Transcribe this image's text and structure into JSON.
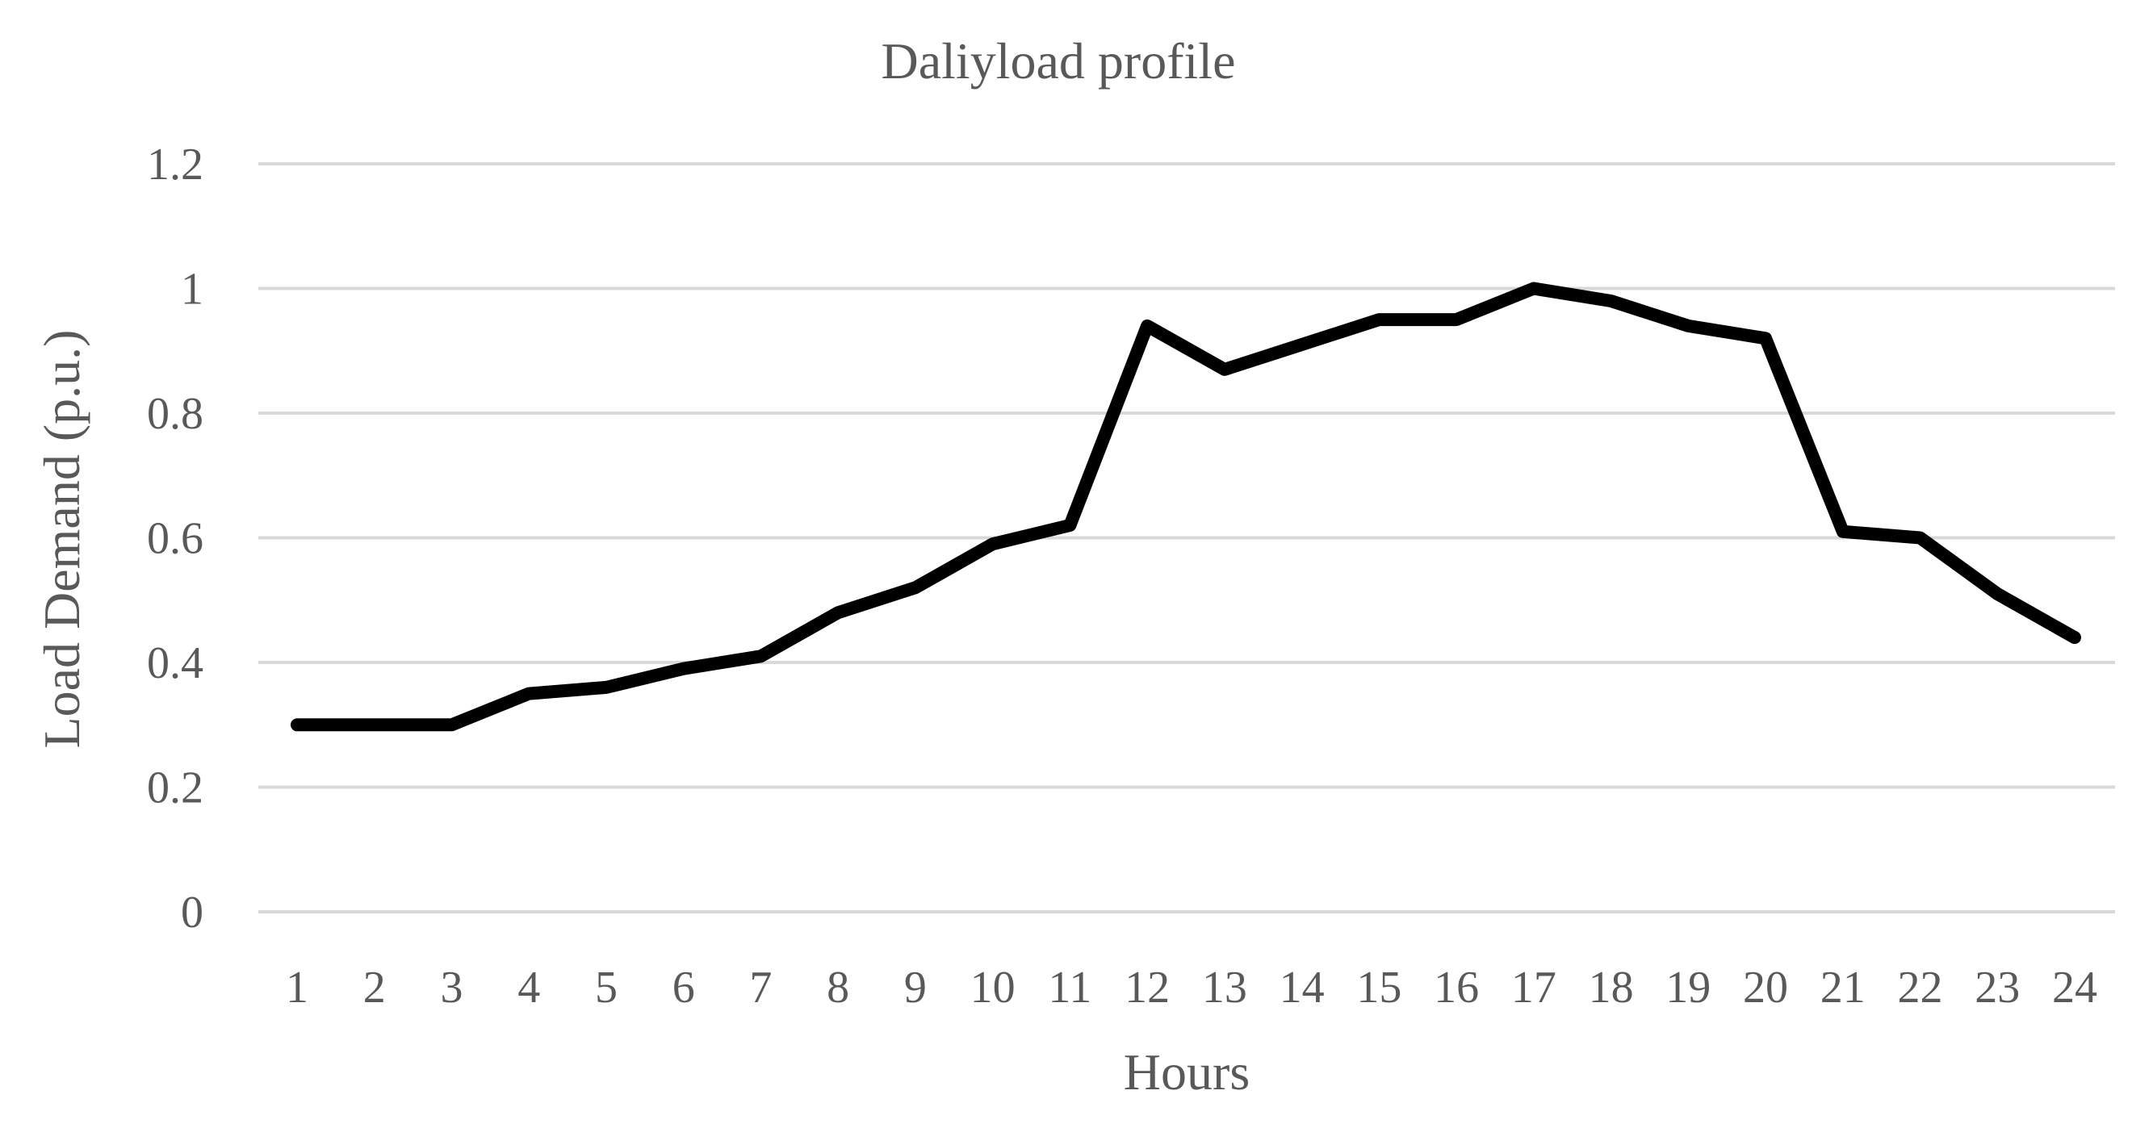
{
  "chart_data": {
    "type": "line",
    "title": "Daliyload profile",
    "xlabel": "Hours",
    "ylabel": "Load Demand (p.u.)",
    "categories": [
      "1",
      "2",
      "3",
      "4",
      "5",
      "6",
      "7",
      "8",
      "9",
      "10",
      "11",
      "12",
      "13",
      "14",
      "15",
      "16",
      "17",
      "18",
      "19",
      "20",
      "21",
      "22",
      "23",
      "24"
    ],
    "y_ticks": [
      "0",
      "0.2",
      "0.4",
      "0.6",
      "0.8",
      "1",
      "1.2"
    ],
    "ylim": [
      0,
      1.2
    ],
    "grid": true,
    "legend": "none",
    "series": [
      {
        "values": [
          0.3,
          0.3,
          0.3,
          0.35,
          0.36,
          0.39,
          0.41,
          0.48,
          0.52,
          0.59,
          0.62,
          0.94,
          0.87,
          0.91,
          0.95,
          0.95,
          1.0,
          0.98,
          0.94,
          0.92,
          0.61,
          0.6,
          0.51,
          0.44
        ],
        "color": "#000000"
      }
    ]
  }
}
